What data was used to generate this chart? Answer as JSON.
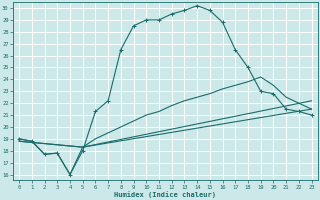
{
  "xlabel": "Humidex (Indice chaleur)",
  "bg_color": "#cce8e8",
  "grid_color": "#ffffff",
  "line_color": "#1a6b6b",
  "xlim": [
    -0.5,
    23.5
  ],
  "ylim": [
    15.5,
    30.5
  ],
  "xticks": [
    0,
    1,
    2,
    3,
    4,
    5,
    6,
    7,
    8,
    9,
    10,
    11,
    12,
    13,
    14,
    15,
    16,
    17,
    18,
    19,
    20,
    21,
    22,
    23
  ],
  "yticks": [
    16,
    17,
    18,
    19,
    20,
    21,
    22,
    23,
    24,
    25,
    26,
    27,
    28,
    29,
    30
  ],
  "curve1_x": [
    0,
    1,
    2,
    3,
    4,
    5,
    6,
    7,
    8,
    9,
    10,
    11,
    12,
    13,
    14,
    15,
    16,
    17,
    18,
    19,
    20,
    21,
    22,
    23
  ],
  "curve1_y": [
    19.0,
    18.8,
    17.7,
    17.8,
    16.0,
    18.0,
    21.3,
    22.2,
    26.5,
    28.5,
    29.0,
    29.0,
    29.5,
    29.8,
    30.2,
    29.8,
    28.8,
    26.5,
    25.0,
    23.0,
    22.8,
    21.5,
    21.3,
    21.0
  ],
  "curve2_x": [
    0,
    1,
    2,
    3,
    4,
    5,
    6,
    7,
    8,
    9,
    10,
    11,
    12,
    13,
    14,
    15,
    16,
    17,
    18,
    19,
    20,
    21,
    22,
    23
  ],
  "curve2_y": [
    19.0,
    18.8,
    17.7,
    17.8,
    16.0,
    18.3,
    19.0,
    19.5,
    20.0,
    20.5,
    21.0,
    21.3,
    21.8,
    22.2,
    22.5,
    22.8,
    23.2,
    23.5,
    23.8,
    24.2,
    23.5,
    22.5,
    22.0,
    21.5
  ],
  "curve3_x": [
    0,
    5,
    23
  ],
  "curve3_y": [
    18.8,
    18.3,
    22.2
  ],
  "curve4_x": [
    0,
    5,
    23
  ],
  "curve4_y": [
    18.8,
    18.3,
    21.5
  ]
}
